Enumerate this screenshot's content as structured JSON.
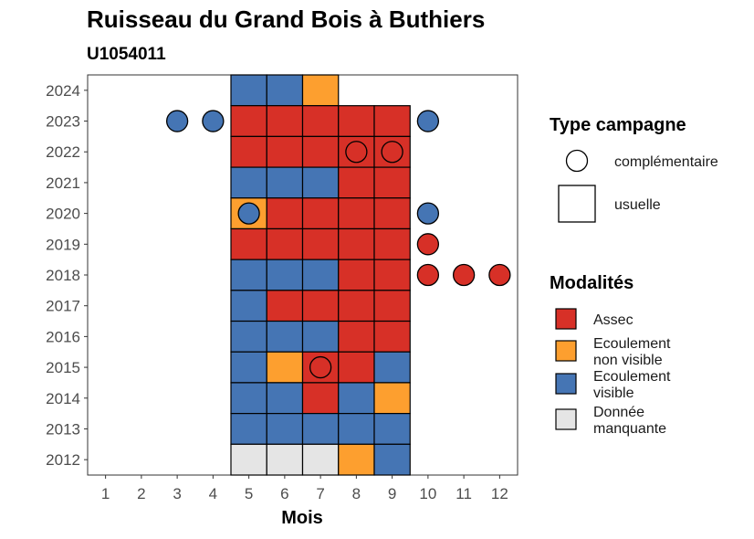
{
  "chart_data": {
    "type": "heatmap",
    "title": "Ruisseau du Grand Bois à Buthiers",
    "subtitle": "U1054011",
    "xlabel": "Mois",
    "ylabel": "",
    "x_ticks": [
      "1",
      "2",
      "3",
      "4",
      "5",
      "6",
      "7",
      "8",
      "9",
      "10",
      "11",
      "12"
    ],
    "y_ticks": [
      "2012",
      "2013",
      "2014",
      "2015",
      "2016",
      "2017",
      "2018",
      "2019",
      "2020",
      "2021",
      "2022",
      "2023",
      "2024"
    ],
    "xlim": [
      0.5,
      12.5
    ],
    "ylim": [
      2011.5,
      2024.5
    ],
    "grid": false,
    "colors": {
      "Assec": "#d73027",
      "Ecoulement non visible": "#fd9f2f",
      "Ecoulement visible": "#4575b4",
      "Donnée manquante": "#e5e5e5"
    },
    "usuelle": [
      {
        "year": 2024,
        "cells": [
          {
            "month": 5,
            "modalite": "Ecoulement visible"
          },
          {
            "month": 6,
            "modalite": "Ecoulement visible"
          },
          {
            "month": 7,
            "modalite": "Ecoulement non visible"
          }
        ]
      },
      {
        "year": 2023,
        "cells": [
          {
            "month": 5,
            "modalite": "Assec"
          },
          {
            "month": 6,
            "modalite": "Assec"
          },
          {
            "month": 7,
            "modalite": "Assec"
          },
          {
            "month": 8,
            "modalite": "Assec"
          },
          {
            "month": 9,
            "modalite": "Assec"
          }
        ]
      },
      {
        "year": 2022,
        "cells": [
          {
            "month": 5,
            "modalite": "Assec"
          },
          {
            "month": 6,
            "modalite": "Assec"
          },
          {
            "month": 7,
            "modalite": "Assec"
          },
          {
            "month": 8,
            "modalite": "Assec"
          },
          {
            "month": 9,
            "modalite": "Assec"
          }
        ]
      },
      {
        "year": 2021,
        "cells": [
          {
            "month": 5,
            "modalite": "Ecoulement visible"
          },
          {
            "month": 6,
            "modalite": "Ecoulement visible"
          },
          {
            "month": 7,
            "modalite": "Ecoulement visible"
          },
          {
            "month": 8,
            "modalite": "Assec"
          },
          {
            "month": 9,
            "modalite": "Assec"
          }
        ]
      },
      {
        "year": 2020,
        "cells": [
          {
            "month": 5,
            "modalite": "Ecoulement non visible"
          },
          {
            "month": 6,
            "modalite": "Assec"
          },
          {
            "month": 7,
            "modalite": "Assec"
          },
          {
            "month": 8,
            "modalite": "Assec"
          },
          {
            "month": 9,
            "modalite": "Assec"
          }
        ]
      },
      {
        "year": 2019,
        "cells": [
          {
            "month": 5,
            "modalite": "Assec"
          },
          {
            "month": 6,
            "modalite": "Assec"
          },
          {
            "month": 7,
            "modalite": "Assec"
          },
          {
            "month": 8,
            "modalite": "Assec"
          },
          {
            "month": 9,
            "modalite": "Assec"
          }
        ]
      },
      {
        "year": 2018,
        "cells": [
          {
            "month": 5,
            "modalite": "Ecoulement visible"
          },
          {
            "month": 6,
            "modalite": "Ecoulement visible"
          },
          {
            "month": 7,
            "modalite": "Ecoulement visible"
          },
          {
            "month": 8,
            "modalite": "Assec"
          },
          {
            "month": 9,
            "modalite": "Assec"
          }
        ]
      },
      {
        "year": 2017,
        "cells": [
          {
            "month": 5,
            "modalite": "Ecoulement visible"
          },
          {
            "month": 6,
            "modalite": "Assec"
          },
          {
            "month": 7,
            "modalite": "Assec"
          },
          {
            "month": 8,
            "modalite": "Assec"
          },
          {
            "month": 9,
            "modalite": "Assec"
          }
        ]
      },
      {
        "year": 2016,
        "cells": [
          {
            "month": 5,
            "modalite": "Ecoulement visible"
          },
          {
            "month": 6,
            "modalite": "Ecoulement visible"
          },
          {
            "month": 7,
            "modalite": "Ecoulement visible"
          },
          {
            "month": 8,
            "modalite": "Assec"
          },
          {
            "month": 9,
            "modalite": "Assec"
          }
        ]
      },
      {
        "year": 2015,
        "cells": [
          {
            "month": 5,
            "modalite": "Ecoulement visible"
          },
          {
            "month": 6,
            "modalite": "Ecoulement non visible"
          },
          {
            "month": 7,
            "modalite": "Assec"
          },
          {
            "month": 8,
            "modalite": "Assec"
          },
          {
            "month": 9,
            "modalite": "Ecoulement visible"
          }
        ]
      },
      {
        "year": 2014,
        "cells": [
          {
            "month": 5,
            "modalite": "Ecoulement visible"
          },
          {
            "month": 6,
            "modalite": "Ecoulement visible"
          },
          {
            "month": 7,
            "modalite": "Assec"
          },
          {
            "month": 8,
            "modalite": "Ecoulement visible"
          },
          {
            "month": 9,
            "modalite": "Ecoulement non visible"
          }
        ]
      },
      {
        "year": 2013,
        "cells": [
          {
            "month": 5,
            "modalite": "Ecoulement visible"
          },
          {
            "month": 6,
            "modalite": "Ecoulement visible"
          },
          {
            "month": 7,
            "modalite": "Ecoulement visible"
          },
          {
            "month": 8,
            "modalite": "Ecoulement visible"
          },
          {
            "month": 9,
            "modalite": "Ecoulement visible"
          }
        ]
      },
      {
        "year": 2012,
        "cells": [
          {
            "month": 5,
            "modalite": "Donnée manquante"
          },
          {
            "month": 6,
            "modalite": "Donnée manquante"
          },
          {
            "month": 7,
            "modalite": "Donnée manquante"
          },
          {
            "month": 8,
            "modalite": "Ecoulement non visible"
          },
          {
            "month": 9,
            "modalite": "Ecoulement visible"
          }
        ]
      }
    ],
    "complementaire": [
      {
        "year": 2023,
        "month": 3,
        "modalite": "Ecoulement visible"
      },
      {
        "year": 2023,
        "month": 4,
        "modalite": "Ecoulement visible"
      },
      {
        "year": 2023,
        "month": 10,
        "modalite": "Ecoulement visible"
      },
      {
        "year": 2022,
        "month": 8,
        "modalite": "Assec"
      },
      {
        "year": 2022,
        "month": 9,
        "modalite": "Assec"
      },
      {
        "year": 2020,
        "month": 5,
        "modalite": "Ecoulement visible"
      },
      {
        "year": 2020,
        "month": 10,
        "modalite": "Ecoulement visible"
      },
      {
        "year": 2019,
        "month": 10,
        "modalite": "Assec"
      },
      {
        "year": 2018,
        "month": 10,
        "modalite": "Assec"
      },
      {
        "year": 2018,
        "month": 11,
        "modalite": "Assec"
      },
      {
        "year": 2018,
        "month": 12,
        "modalite": "Assec"
      },
      {
        "year": 2015,
        "month": 7,
        "modalite": "Assec"
      }
    ],
    "legend": {
      "type_title": "Type campagne",
      "type_items": [
        {
          "shape": "circle",
          "label": "complémentaire"
        },
        {
          "shape": "square",
          "label": "usuelle"
        }
      ],
      "modalites_title": "Modalités",
      "modalites_items": [
        {
          "key": "Assec",
          "lines": [
            "Assec"
          ]
        },
        {
          "key": "Ecoulement non visible",
          "lines": [
            "Ecoulement",
            "non visible"
          ]
        },
        {
          "key": "Ecoulement visible",
          "lines": [
            "Ecoulement",
            "visible"
          ]
        },
        {
          "key": "Donnée manquante",
          "lines": [
            "Donnée",
            "manquante"
          ]
        }
      ],
      "placement": "right"
    }
  }
}
